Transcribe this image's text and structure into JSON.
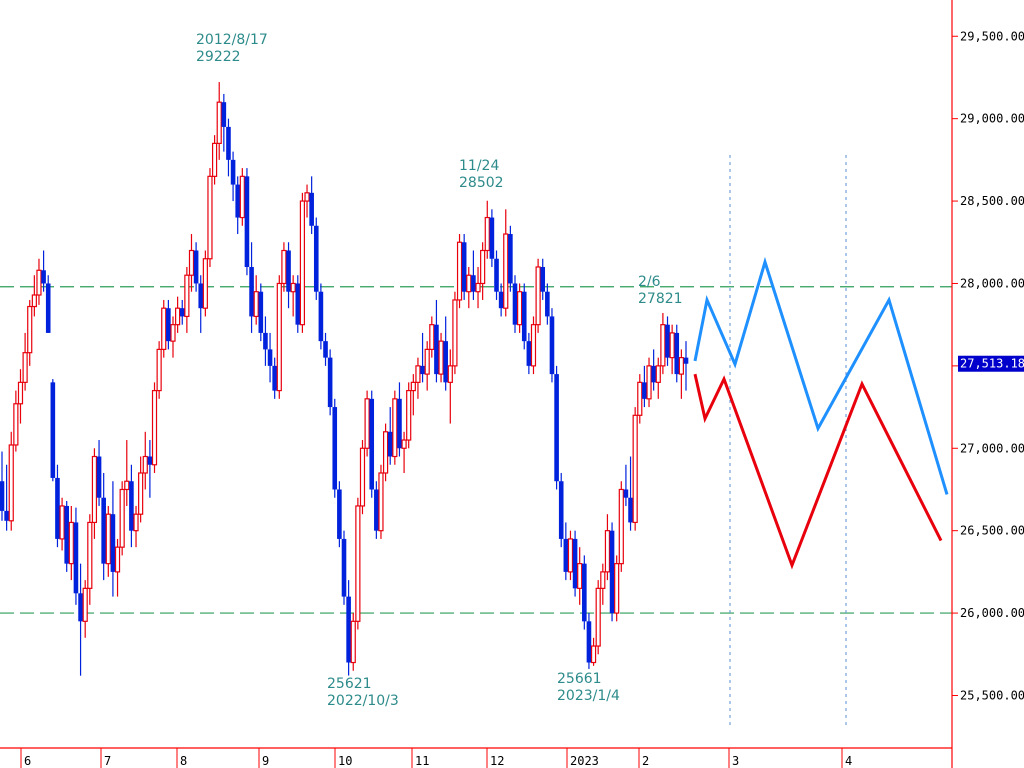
{
  "chart_data": {
    "type": "candlestick",
    "y_axis": {
      "ticks": [
        25500,
        26000,
        26500,
        27000,
        27500,
        28000,
        28500,
        29000,
        29500
      ],
      "tick_labels": [
        "25,500.00",
        "26,000.00",
        "26,500.00",
        "27,000.00",
        "27,500.00",
        "28,000.00",
        "28,500.00",
        "29,000.00",
        "29,500.00"
      ],
      "range": [
        25060,
        29720
      ]
    },
    "x_axis": {
      "tick_labels": [
        "6",
        "7",
        "8",
        "9",
        "10",
        "11",
        "12",
        "2023",
        "2",
        "3",
        "4"
      ]
    },
    "reference_lines": [
      {
        "value": 27980,
        "color": "#2e9e5a",
        "style": "dashed"
      },
      {
        "value": 26000,
        "color": "#2e9e5a",
        "style": "dashed"
      }
    ],
    "last_price": {
      "value": 27513,
      "label": "27,513.18",
      "bg": "#0000cc"
    },
    "annotations": [
      {
        "lines": [
          "2012/8/17",
          "29222"
        ],
        "value": 29222
      },
      {
        "lines": [
          "11/24",
          "28502"
        ],
        "value": 28502
      },
      {
        "lines": [
          "2/6",
          "27821"
        ],
        "value": 27821
      },
      {
        "lines": [
          "25621",
          "2022/10/3"
        ],
        "value": 25621
      },
      {
        "lines": [
          "25661",
          "2023/1/4"
        ],
        "value": 25661
      }
    ],
    "candles": {
      "up_color": "#e8000c",
      "down_color": "#0022dd",
      "data": [
        [
          26800,
          26980,
          26560,
          26620
        ],
        [
          26620,
          26900,
          26500,
          26560
        ],
        [
          26560,
          27100,
          26500,
          27020
        ],
        [
          27020,
          27350,
          26980,
          27270
        ],
        [
          27270,
          27480,
          27150,
          27400
        ],
        [
          27400,
          27700,
          27350,
          27580
        ],
        [
          27580,
          27900,
          27500,
          27860
        ],
        [
          27860,
          28050,
          27800,
          27930
        ],
        [
          27930,
          28150,
          27870,
          28080
        ],
        [
          28080,
          28200,
          27950,
          28000
        ],
        [
          28000,
          28050,
          27700,
          27700
        ],
        [
          27400,
          27420,
          26800,
          26820
        ],
        [
          26820,
          26900,
          26400,
          26450
        ],
        [
          26450,
          26700,
          26380,
          26650
        ],
        [
          26650,
          26680,
          26250,
          26300
        ],
        [
          26300,
          26650,
          26200,
          26550
        ],
        [
          26550,
          26640,
          26050,
          26120
        ],
        [
          26120,
          26300,
          25620,
          25950
        ],
        [
          25950,
          26200,
          25850,
          26150
        ],
        [
          26150,
          26600,
          26050,
          26550
        ],
        [
          26550,
          27000,
          26450,
          26950
        ],
        [
          26950,
          27050,
          26650,
          26700
        ],
        [
          26700,
          26850,
          26200,
          26300
        ],
        [
          26300,
          26650,
          26220,
          26600
        ],
        [
          26600,
          26800,
          26100,
          26250
        ],
        [
          26250,
          26450,
          26100,
          26400
        ],
        [
          26400,
          26800,
          26350,
          26750
        ],
        [
          26750,
          27050,
          26650,
          26800
        ],
        [
          26800,
          26900,
          26400,
          26500
        ],
        [
          26500,
          26650,
          26400,
          26600
        ],
        [
          26600,
          26950,
          26550,
          26850
        ],
        [
          26850,
          27100,
          26750,
          26950
        ],
        [
          26950,
          27050,
          26700,
          26900
        ],
        [
          26900,
          27400,
          26850,
          27350
        ],
        [
          27350,
          27650,
          27300,
          27600
        ],
        [
          27600,
          27900,
          27550,
          27850
        ],
        [
          27850,
          27900,
          27600,
          27650
        ],
        [
          27650,
          27800,
          27550,
          27750
        ],
        [
          27750,
          27920,
          27700,
          27850
        ],
        [
          27850,
          27900,
          27750,
          27800
        ],
        [
          27800,
          28100,
          27700,
          28050
        ],
        [
          28050,
          28300,
          27950,
          28200
        ],
        [
          28200,
          28250,
          27950,
          28000
        ],
        [
          28000,
          28050,
          27700,
          27850
        ],
        [
          27850,
          28200,
          27800,
          28150
        ],
        [
          28150,
          28700,
          28100,
          28650
        ],
        [
          28650,
          28900,
          28600,
          28850
        ],
        [
          28850,
          29222,
          28750,
          29100
        ],
        [
          29100,
          29150,
          28800,
          28950
        ],
        [
          28950,
          29000,
          28650,
          28750
        ],
        [
          28750,
          28800,
          28500,
          28600
        ],
        [
          28600,
          28650,
          28300,
          28400
        ],
        [
          28400,
          28700,
          28350,
          28650
        ],
        [
          28650,
          28700,
          28050,
          28100
        ],
        [
          28100,
          28250,
          27700,
          27800
        ],
        [
          27800,
          28050,
          27750,
          27950
        ],
        [
          27950,
          28000,
          27650,
          27700
        ],
        [
          27700,
          27800,
          27500,
          27600
        ],
        [
          27600,
          27700,
          27400,
          27500
        ],
        [
          27500,
          27550,
          27300,
          27350
        ],
        [
          27350,
          28050,
          27300,
          28000
        ],
        [
          28000,
          28250,
          27950,
          28200
        ],
        [
          28200,
          28250,
          27850,
          27950
        ],
        [
          27950,
          28050,
          27800,
          28000
        ],
        [
          28000,
          28050,
          27700,
          27750
        ],
        [
          27750,
          28550,
          27700,
          28500
        ],
        [
          28500,
          28600,
          28400,
          28550
        ],
        [
          28550,
          28650,
          28300,
          28350
        ],
        [
          28350,
          28400,
          27900,
          27950
        ],
        [
          27950,
          28000,
          27600,
          27650
        ],
        [
          27650,
          27700,
          27500,
          27550
        ],
        [
          27550,
          27600,
          27200,
          27250
        ],
        [
          27250,
          27300,
          26700,
          26750
        ],
        [
          26750,
          26800,
          26400,
          26450
        ],
        [
          26450,
          26500,
          26050,
          26100
        ],
        [
          26100,
          26200,
          25621,
          25700
        ],
        [
          25700,
          26000,
          25650,
          25950
        ],
        [
          25950,
          26700,
          25900,
          26650
        ],
        [
          26650,
          27050,
          26600,
          27000
        ],
        [
          27000,
          27350,
          26950,
          27300
        ],
        [
          27300,
          27350,
          26700,
          26750
        ],
        [
          26750,
          26800,
          26450,
          26500
        ],
        [
          26500,
          26900,
          26450,
          26850
        ],
        [
          26850,
          27150,
          26800,
          27100
        ],
        [
          27100,
          27250,
          26900,
          26950
        ],
        [
          26950,
          27350,
          26900,
          27300
        ],
        [
          27300,
          27400,
          26950,
          27000
        ],
        [
          27000,
          27100,
          26850,
          27050
        ],
        [
          27050,
          27400,
          27000,
          27350
        ],
        [
          27350,
          27450,
          27200,
          27400
        ],
        [
          27400,
          27550,
          27300,
          27500
        ],
        [
          27500,
          27700,
          27400,
          27450
        ],
        [
          27450,
          27650,
          27350,
          27600
        ],
        [
          27600,
          27800,
          27550,
          27750
        ],
        [
          27750,
          27900,
          27400,
          27450
        ],
        [
          27450,
          27700,
          27400,
          27650
        ],
        [
          27650,
          27800,
          27350,
          27400
        ],
        [
          27400,
          27600,
          27150,
          27500
        ],
        [
          27500,
          27950,
          27450,
          27900
        ],
        [
          27900,
          28300,
          27850,
          28250
        ],
        [
          28250,
          28300,
          27900,
          27950
        ],
        [
          27950,
          28100,
          27850,
          28050
        ],
        [
          28050,
          28200,
          27900,
          27950
        ],
        [
          27950,
          28100,
          27850,
          28000
        ],
        [
          28000,
          28250,
          27900,
          28200
        ],
        [
          28200,
          28502,
          28150,
          28400
        ],
        [
          28400,
          28450,
          28100,
          28150
        ],
        [
          28150,
          28200,
          27900,
          27950
        ],
        [
          27950,
          28000,
          27800,
          27850
        ],
        [
          27850,
          28450,
          27800,
          28300
        ],
        [
          28300,
          28350,
          27950,
          28000
        ],
        [
          28000,
          28050,
          27700,
          27750
        ],
        [
          27750,
          28000,
          27700,
          27950
        ],
        [
          27950,
          28000,
          27600,
          27650
        ],
        [
          27650,
          27700,
          27450,
          27500
        ],
        [
          27500,
          27800,
          27450,
          27750
        ],
        [
          27750,
          28150,
          27700,
          28100
        ],
        [
          28100,
          28150,
          27900,
          27950
        ],
        [
          27950,
          28000,
          27750,
          27800
        ],
        [
          27800,
          27850,
          27400,
          27450
        ],
        [
          27450,
          27500,
          26750,
          26800
        ],
        [
          26800,
          26850,
          26400,
          26450
        ],
        [
          26450,
          26550,
          26200,
          26250
        ],
        [
          26250,
          26500,
          26200,
          26450
        ],
        [
          26450,
          26500,
          26100,
          26150
        ],
        [
          26150,
          26400,
          26050,
          26300
        ],
        [
          26300,
          26350,
          25900,
          25950
        ],
        [
          25950,
          26000,
          25661,
          25700
        ],
        [
          25700,
          25850,
          25680,
          25800
        ],
        [
          25800,
          26200,
          25750,
          26150
        ],
        [
          26150,
          26300,
          26050,
          26250
        ],
        [
          26250,
          26600,
          26200,
          26500
        ],
        [
          26500,
          26550,
          25950,
          26000
        ],
        [
          26000,
          26350,
          25950,
          26300
        ],
        [
          26300,
          26800,
          26250,
          26750
        ],
        [
          26750,
          26900,
          26650,
          26700
        ],
        [
          26700,
          26950,
          26500,
          26550
        ],
        [
          26550,
          27250,
          26500,
          27200
        ],
        [
          27200,
          27450,
          27150,
          27400
        ],
        [
          27400,
          27500,
          27250,
          27300
        ],
        [
          27300,
          27550,
          27250,
          27500
        ],
        [
          27500,
          27600,
          27350,
          27400
        ],
        [
          27400,
          27550,
          27300,
          27500
        ],
        [
          27500,
          27821,
          27450,
          27750
        ],
        [
          27750,
          27800,
          27500,
          27550
        ],
        [
          27550,
          27750,
          27450,
          27700
        ],
        [
          27700,
          27750,
          27400,
          27450
        ],
        [
          27450,
          27600,
          27300,
          27550
        ],
        [
          27550,
          27650,
          27350,
          27513
        ]
      ]
    },
    "forecast_lines": [
      {
        "color": "#1e90ff",
        "values": [
          27530,
          27900,
          27510,
          28130,
          27120,
          27900,
          26720
        ]
      },
      {
        "color": "#e8000c",
        "values": [
          27450,
          27180,
          27420,
          26290,
          27390,
          26440
        ]
      }
    ],
    "grid": false
  }
}
